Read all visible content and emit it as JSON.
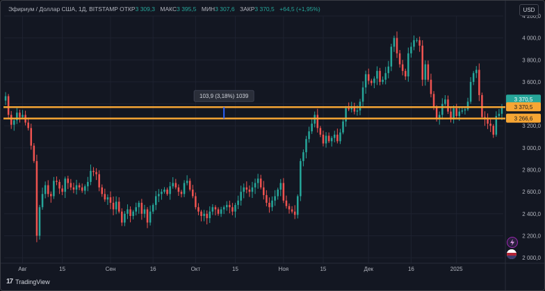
{
  "header": {
    "symbol": "Эфириум / Доллар США, 1Д, BITSTAMP",
    "open_label": "ОТКР",
    "open_value": "3 309,3",
    "high_label": "МАКС",
    "high_value": "3 395,5",
    "low_label": "МИН",
    "low_value": "3 307,6",
    "close_label": "ЗАКР",
    "close_value": "3 370,5",
    "change": "+64,5 (+1,95%)"
  },
  "currency": "USD",
  "brand": "TradingView",
  "colors": {
    "up": "#26a69a",
    "down": "#ef5350",
    "level": "#f7a634",
    "bg": "#131722",
    "measure": "#2962ff"
  },
  "icons": [
    "lightning-icon",
    "flag-icon"
  ],
  "chart_data": {
    "type": "candlestick",
    "y_axis": {
      "min": 1950,
      "max": 4200,
      "ticks": [
        2000,
        2200,
        2400,
        2600,
        2800,
        3000,
        3200,
        3400,
        3600,
        3800,
        4000,
        4200
      ]
    },
    "y_tick_labels": [
      "2 000,0",
      "2 200,0",
      "2 400,0",
      "2 600,0",
      "2 800,0",
      "3 000,0",
      "3 200,0",
      "3 400,0",
      "3 600,0",
      "3 800,0",
      "4 000,0",
      "4 200,0"
    ],
    "x_labels": [
      {
        "label": "Авг",
        "day": 6
      },
      {
        "label": "15",
        "day": 20
      },
      {
        "label": "Сен",
        "day": 37
      },
      {
        "label": "16",
        "day": 52
      },
      {
        "label": "Окт",
        "day": 67
      },
      {
        "label": "15",
        "day": 81
      },
      {
        "label": "Ноя",
        "day": 98
      },
      {
        "label": "15",
        "day": 112
      },
      {
        "label": "Дек",
        "day": 128
      },
      {
        "label": "16",
        "day": 143
      },
      {
        "label": "2025",
        "day": 159
      }
    ],
    "day_count": 176,
    "levels": [
      3370.5,
      3266.6
    ],
    "level_labels": [
      "3 370,5",
      "3 266,6"
    ],
    "last_price": 3370.5,
    "last_price_label": "3 370,5",
    "measure": {
      "day": 77,
      "from": 3266.6,
      "to": 3370.5,
      "label": "103,9 (3,18%) 1039"
    },
    "closes": [
      3470,
      3300,
      3210,
      3250,
      3320,
      3280,
      3300,
      3230,
      3180,
      3020,
      2880,
      2200,
      2460,
      2580,
      2660,
      2580,
      2560,
      2700,
      2690,
      2630,
      2600,
      2720,
      2680,
      2640,
      2620,
      2660,
      2640,
      2610,
      2650,
      2690,
      2790,
      2780,
      2760,
      2640,
      2580,
      2530,
      2550,
      2500,
      2440,
      2510,
      2420,
      2320,
      2400,
      2440,
      2380,
      2420,
      2460,
      2500,
      2400,
      2440,
      2320,
      2420,
      2480,
      2560,
      2580,
      2600,
      2620,
      2580,
      2650,
      2680,
      2640,
      2600,
      2580,
      2680,
      2700,
      2620,
      2560,
      2460,
      2420,
      2380,
      2400,
      2360,
      2420,
      2460,
      2440,
      2400,
      2440,
      2460,
      2480,
      2460,
      2420,
      2480,
      2520,
      2600,
      2640,
      2620,
      2600,
      2640,
      2680,
      2720,
      2640,
      2570,
      2500,
      2460,
      2520,
      2560,
      2620,
      2680,
      2520,
      2470,
      2440,
      2420,
      2390,
      2560,
      2880,
      2960,
      3080,
      3150,
      3220,
      3300,
      3180,
      3120,
      3040,
      3110,
      3060,
      3090,
      3120,
      3060,
      3140,
      3240,
      3360,
      3350,
      3380,
      3330,
      3340,
      3420,
      3550,
      3670,
      3610,
      3590,
      3630,
      3700,
      3600,
      3620,
      3680,
      3740,
      3920,
      4000,
      3860,
      3760,
      3700,
      3650,
      3860,
      3920,
      3980,
      3980,
      3930,
      3620,
      3760,
      3620,
      3490,
      3370,
      3270,
      3300,
      3400,
      3440,
      3330,
      3260,
      3360,
      3290,
      3330,
      3340,
      3350,
      3420,
      3600,
      3680,
      3710,
      3480,
      3280,
      3260,
      3220,
      3200,
      3120,
      3290,
      3310,
      3370
    ]
  }
}
